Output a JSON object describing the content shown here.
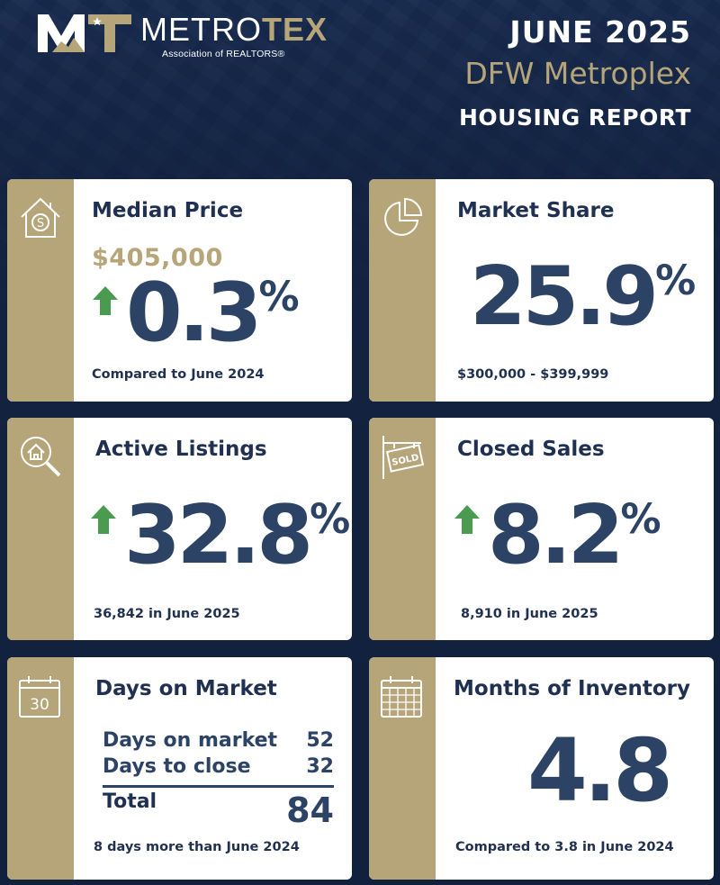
{
  "header": {
    "brand_left": "METRO",
    "brand_right": "TEX",
    "brand_sub": "Association of REALTORS®",
    "month": "JUNE 2025",
    "region": "DFW Metroplex",
    "report": "HOUSING REPORT"
  },
  "colors": {
    "navy": "#1f3050",
    "gold": "#b7a57a",
    "up_green": "#4a9a4f",
    "value_blue": "#2c4366"
  },
  "cards": {
    "median": {
      "icon": "house-dollar-icon",
      "title": "Median Price",
      "price": "$405,000",
      "change_value": "0.3",
      "change_unit": "%",
      "trend": "up-arrow-icon",
      "note": "Compared to June 2024"
    },
    "share": {
      "icon": "pie-chart-icon",
      "title": "Market Share",
      "value": "25.9",
      "unit": "%",
      "note": "$300,000 - $399,999"
    },
    "active": {
      "icon": "house-search-icon",
      "title": "Active Listings",
      "change_value": "32.8",
      "change_unit": "%",
      "trend": "up-arrow-icon",
      "note": "36,842 in June 2025"
    },
    "closed": {
      "icon": "sold-sign-icon",
      "title": "Closed Sales",
      "change_value": "8.2",
      "change_unit": "%",
      "trend": "up-arrow-icon",
      "note": "8,910 in June 2025"
    },
    "dom": {
      "icon": "calendar-30-icon",
      "icon_text": "30",
      "title": "Days on Market",
      "rows": [
        {
          "label": "Days on market",
          "value": "52"
        },
        {
          "label": "Days to close",
          "value": "32"
        }
      ],
      "total_label": "Total",
      "total_value": "84",
      "note": "8 days more than June 2024"
    },
    "inventory": {
      "icon": "calendar-grid-icon",
      "title": "Months of Inventory",
      "value": "4.8",
      "note": "Compared to 3.8 in June 2024"
    }
  }
}
